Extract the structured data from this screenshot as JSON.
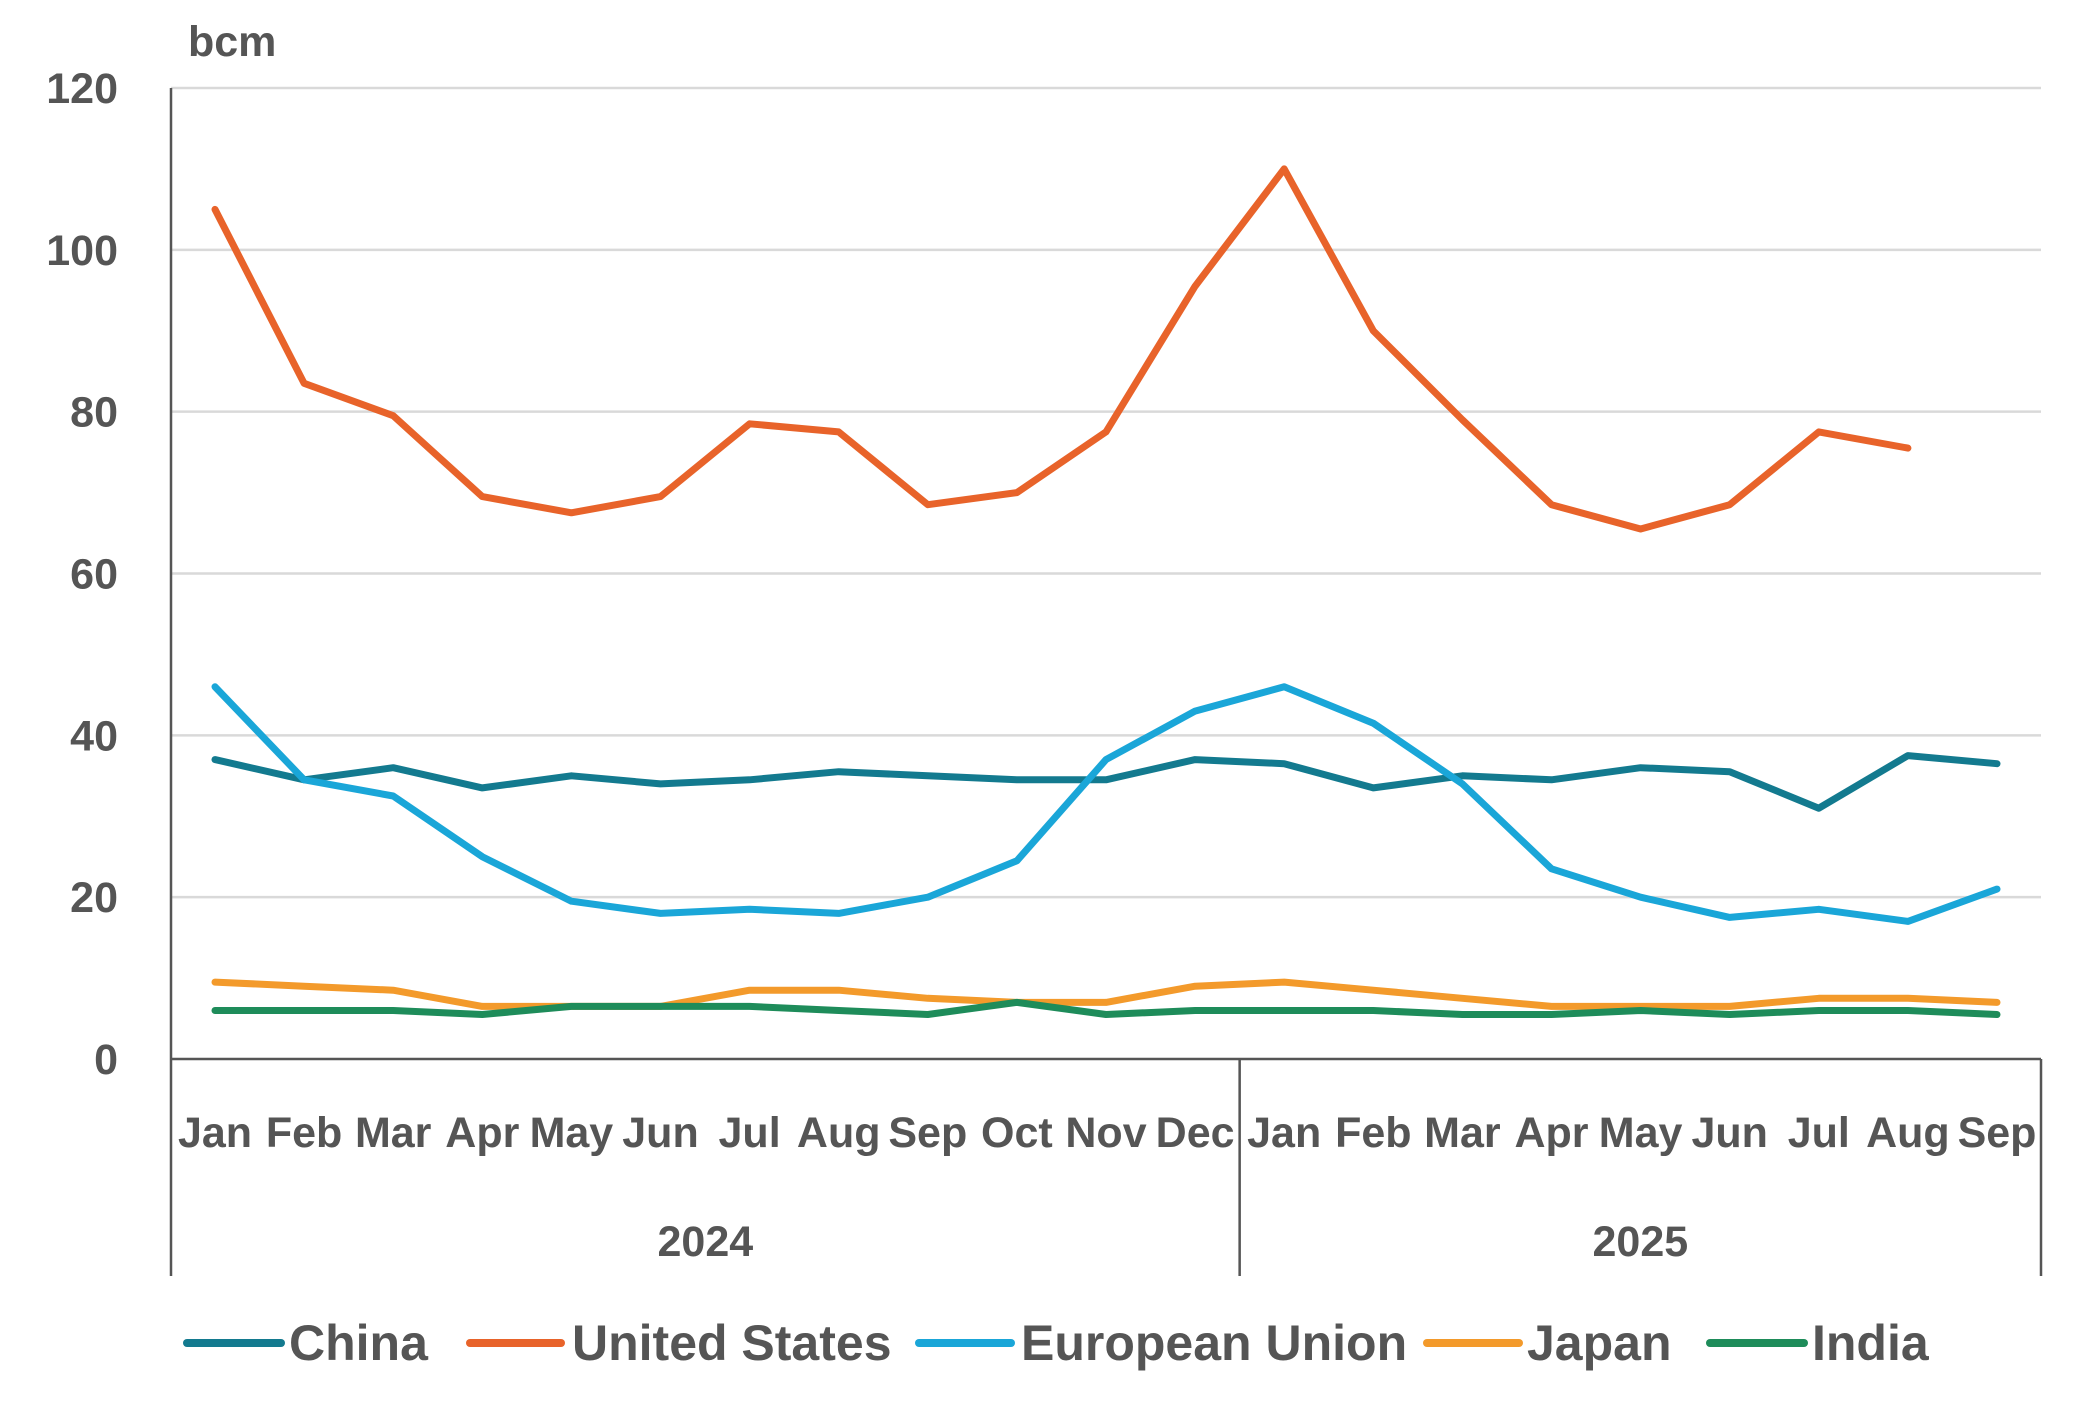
{
  "chart_data": {
    "type": "line",
    "unit_label": "bcm",
    "ylim": [
      0,
      120
    ],
    "yticks": [
      0,
      20,
      40,
      60,
      80,
      100,
      120
    ],
    "grid": true,
    "legend_placement": "bottom",
    "groups": [
      {
        "label": "2024",
        "months": [
          "Jan",
          "Feb",
          "Mar",
          "Apr",
          "May",
          "Jun",
          "Jul",
          "Aug",
          "Sep",
          "Oct",
          "Nov",
          "Dec"
        ]
      },
      {
        "label": "2025",
        "months": [
          "Jan",
          "Feb",
          "Mar",
          "Apr",
          "May",
          "Jun",
          "Jul",
          "Aug",
          "Sep"
        ]
      }
    ],
    "series": [
      {
        "name": "China",
        "color": "#137a8f",
        "values": [
          37,
          34.5,
          36,
          33.5,
          35,
          34,
          34.5,
          35.5,
          35,
          34.5,
          34.5,
          37,
          36.5,
          33.5,
          35,
          34.5,
          36,
          35.5,
          31,
          37.5,
          36.5
        ]
      },
      {
        "name": "United States",
        "color": "#e8632a",
        "values": [
          105,
          83.5,
          79.5,
          69.5,
          67.5,
          69.5,
          78.5,
          77.5,
          68.5,
          70,
          77.5,
          95.5,
          110,
          90,
          79,
          68.5,
          65.5,
          68.5,
          77.5,
          75.5,
          null
        ]
      },
      {
        "name": "European Union",
        "color": "#1aa6d8",
        "values": [
          46,
          34.5,
          32.5,
          25,
          19.5,
          18,
          18.5,
          18,
          20,
          24.5,
          37,
          43,
          46,
          41.5,
          34,
          23.5,
          20,
          17.5,
          18.5,
          17,
          21
        ]
      },
      {
        "name": "Japan",
        "color": "#f39a2b",
        "values": [
          9.5,
          9,
          8.5,
          6.5,
          6.5,
          6.5,
          8.5,
          8.5,
          7.5,
          7,
          7,
          9,
          9.5,
          8.5,
          7.5,
          6.5,
          6.5,
          6.5,
          7.5,
          7.5,
          7
        ]
      },
      {
        "name": "India",
        "color": "#1e8c5a",
        "values": [
          6,
          6,
          6,
          5.5,
          6.5,
          6.5,
          6.5,
          6,
          5.5,
          7,
          5.5,
          6,
          6,
          6,
          5.5,
          5.5,
          6,
          5.5,
          6,
          6,
          5.5
        ]
      }
    ]
  }
}
